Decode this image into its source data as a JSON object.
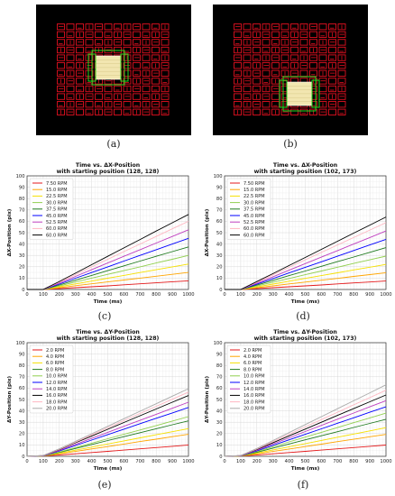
{
  "sim_panels": [
    {
      "label": "(a)"
    },
    {
      "label": "(b)"
    }
  ],
  "chart_panels": [
    {
      "label": "(c)"
    },
    {
      "label": "(d)"
    },
    {
      "label": "(e)"
    },
    {
      "label": "(f)"
    }
  ],
  "chart_data": [
    {
      "type": "line",
      "title": "Time vs. ΔX-Position",
      "subtitle": "with starting position (128, 128)",
      "xlabel": "Time (ms)",
      "ylabel": "ΔX-Position (pix)",
      "xlim": [
        0,
        1000
      ],
      "ylim": [
        0,
        100
      ],
      "xticks": [
        "0",
        "100",
        "200",
        "300",
        "400",
        "500",
        "600",
        "700",
        "800",
        "900",
        "1000"
      ],
      "yticks": [
        "0",
        "10",
        "20",
        "30",
        "40",
        "50",
        "60",
        "70",
        "80",
        "90",
        "100"
      ],
      "grid": true,
      "legend_position": "top-left",
      "x": [
        0,
        100,
        200,
        300,
        400,
        500,
        600,
        700,
        800,
        900,
        1000
      ],
      "series": [
        {
          "name": "7.50 RPM",
          "color": "#e41a1c",
          "values": [
            0,
            0,
            0.8,
            1.6,
            2.4,
            3.2,
            4.1,
            5.0,
            5.9,
            6.8,
            7.6
          ]
        },
        {
          "name": "15.0 RPM",
          "color": "#ffa500",
          "values": [
            0,
            0,
            1.6,
            3.3,
            5.0,
            6.7,
            8.3,
            10.0,
            11.7,
            13.3,
            15.0
          ]
        },
        {
          "name": "22.5 RPM",
          "color": "#f5e000",
          "values": [
            0,
            0,
            2.4,
            4.9,
            7.4,
            9.9,
            12.4,
            14.9,
            17.4,
            19.9,
            22.4
          ]
        },
        {
          "name": "30.0 RPM",
          "color": "#92d050",
          "values": [
            0,
            0,
            3.2,
            6.6,
            10.0,
            13.3,
            16.6,
            19.9,
            23.3,
            26.6,
            30.0
          ]
        },
        {
          "name": "37.5 RPM",
          "color": "#1f7a1f",
          "values": [
            0,
            0,
            4.0,
            8.2,
            12.4,
            16.6,
            20.8,
            25.0,
            29.2,
            33.3,
            37.5
          ]
        },
        {
          "name": "45.0 RPM",
          "color": "#0000ff",
          "values": [
            0,
            0,
            4.8,
            9.9,
            14.9,
            19.9,
            25.0,
            30.0,
            35.0,
            40.0,
            45.0
          ]
        },
        {
          "name": "52.5 RPM",
          "color": "#bf3fbf",
          "values": [
            0,
            0,
            5.6,
            11.5,
            17.4,
            23.3,
            29.2,
            35.0,
            40.9,
            46.7,
            52.5
          ]
        },
        {
          "name": "60.0 RPM",
          "color": "#ffb6c1",
          "values": [
            0,
            0,
            6.4,
            13.1,
            19.9,
            26.6,
            33.3,
            40.0,
            46.7,
            53.4,
            60.0
          ]
        },
        {
          "name": "60.0 RPM",
          "color": "#000000",
          "values": [
            0,
            0,
            7.1,
            14.4,
            21.8,
            29.2,
            36.6,
            44.0,
            51.4,
            58.7,
            66.0
          ]
        }
      ]
    },
    {
      "type": "line",
      "title": "Time vs. ΔX-Position",
      "subtitle": "with starting position (102, 173)",
      "xlabel": "Time (ms)",
      "ylabel": "ΔX-Position (pix)",
      "xlim": [
        0,
        1000
      ],
      "ylim": [
        0,
        100
      ],
      "xticks": [
        "0",
        "100",
        "200",
        "300",
        "400",
        "500",
        "600",
        "700",
        "800",
        "900",
        "1000"
      ],
      "yticks": [
        "0",
        "10",
        "20",
        "30",
        "40",
        "50",
        "60",
        "70",
        "80",
        "90",
        "100"
      ],
      "grid": true,
      "legend_position": "top-left",
      "x": [
        0,
        100,
        200,
        300,
        400,
        500,
        600,
        700,
        800,
        900,
        1000
      ],
      "series": [
        {
          "name": "7.50 RPM",
          "color": "#e41a1c",
          "values": [
            0,
            0,
            0.8,
            1.6,
            2.4,
            3.2,
            4.0,
            4.9,
            5.8,
            6.6,
            7.5
          ]
        },
        {
          "name": "15.0 RPM",
          "color": "#ffa500",
          "values": [
            0,
            0,
            1.6,
            3.2,
            4.9,
            6.5,
            8.2,
            9.8,
            11.5,
            13.1,
            14.8
          ]
        },
        {
          "name": "22.5 RPM",
          "color": "#f5e000",
          "values": [
            0,
            0,
            2.3,
            4.8,
            7.3,
            9.8,
            12.2,
            14.7,
            17.2,
            19.6,
            22.1
          ]
        },
        {
          "name": "30.0 RPM",
          "color": "#92d050",
          "values": [
            0,
            0,
            3.1,
            6.4,
            9.7,
            13.0,
            16.3,
            19.6,
            22.9,
            26.1,
            29.4
          ]
        },
        {
          "name": "37.5 RPM",
          "color": "#1f7a1f",
          "values": [
            0,
            0,
            3.9,
            8.0,
            12.2,
            16.3,
            20.4,
            24.5,
            28.6,
            32.7,
            36.8
          ]
        },
        {
          "name": "45.0 RPM",
          "color": "#0000ff",
          "values": [
            0,
            0,
            4.7,
            9.6,
            14.6,
            19.5,
            24.4,
            29.3,
            34.3,
            39.2,
            44.1
          ]
        },
        {
          "name": "52.5 RPM",
          "color": "#bf3fbf",
          "values": [
            0,
            0,
            5.5,
            11.2,
            17.0,
            22.8,
            28.5,
            34.2,
            40.0,
            45.7,
            51.5
          ]
        },
        {
          "name": "60.0 RPM",
          "color": "#ffb6c1",
          "values": [
            0,
            0,
            6.3,
            12.9,
            19.5,
            26.1,
            32.6,
            39.2,
            45.7,
            52.3,
            58.8
          ]
        },
        {
          "name": "60.0 RPM",
          "color": "#000000",
          "values": [
            0,
            0,
            7.0,
            14.0,
            21.1,
            28.2,
            35.3,
            42.5,
            49.6,
            56.7,
            63.8
          ]
        }
      ]
    },
    {
      "type": "line",
      "title": "Time vs. ΔY-Position",
      "subtitle": "with starting position (128, 128)",
      "xlabel": "Time (ms)",
      "ylabel": "ΔY-Position (pix)",
      "xlim": [
        0,
        1000
      ],
      "ylim": [
        0,
        100
      ],
      "xticks": [
        "0",
        "100",
        "200",
        "300",
        "400",
        "500",
        "600",
        "700",
        "800",
        "900",
        "1000"
      ],
      "yticks": [
        "0",
        "10",
        "20",
        "30",
        "40",
        "50",
        "60",
        "70",
        "80",
        "90",
        "100"
      ],
      "grid": true,
      "legend_position": "top-left",
      "x": [
        0,
        100,
        200,
        300,
        400,
        500,
        600,
        700,
        800,
        900,
        1000
      ],
      "series": [
        {
          "name": "2.0 RPM",
          "color": "#e41a1c",
          "values": [
            0,
            0.2,
            1.2,
            2.2,
            3.3,
            4.4,
            5.5,
            6.6,
            7.7,
            8.8,
            10.0
          ]
        },
        {
          "name": "4.0 RPM",
          "color": "#ffa500",
          "values": [
            0,
            0.3,
            2.2,
            4.3,
            6.5,
            8.6,
            10.8,
            13.0,
            15.1,
            17.3,
            19.4
          ]
        },
        {
          "name": "6.0 RPM",
          "color": "#f5e000",
          "values": [
            0,
            0.3,
            2.7,
            5.4,
            8.1,
            10.9,
            13.6,
            16.3,
            19.0,
            21.7,
            24.4
          ]
        },
        {
          "name": "8.0 RPM",
          "color": "#1f7a1f",
          "values": [
            0,
            0.4,
            3.4,
            6.9,
            10.4,
            13.9,
            17.3,
            20.8,
            24.3,
            27.8,
            31.2
          ]
        },
        {
          "name": "10.0 RPM",
          "color": "#92d050",
          "values": [
            0,
            0.4,
            3.8,
            7.7,
            11.6,
            15.5,
            19.4,
            23.2,
            27.1,
            31.0,
            34.9
          ]
        },
        {
          "name": "12.0 RPM",
          "color": "#0000ff",
          "values": [
            0,
            0.5,
            4.7,
            9.5,
            14.3,
            19.1,
            23.9,
            28.7,
            33.5,
            38.2,
            43.0
          ]
        },
        {
          "name": "14.0 RPM",
          "color": "#bf3fbf",
          "values": [
            0,
            0.5,
            5.2,
            10.5,
            15.8,
            21.1,
            26.4,
            31.7,
            37.0,
            42.3,
            47.6
          ]
        },
        {
          "name": "16.0 RPM",
          "color": "#000000",
          "values": [
            0,
            0.6,
            5.9,
            11.9,
            17.8,
            23.8,
            29.8,
            35.7,
            41.7,
            47.6,
            53.5
          ]
        },
        {
          "name": "18.0 RPM",
          "color": "#ffb6c1",
          "values": [
            0,
            0.6,
            6.2,
            12.5,
            18.8,
            25.1,
            31.4,
            37.7,
            44.0,
            50.2,
            56.5
          ]
        },
        {
          "name": "20.0 RPM",
          "color": "#aaaaaa",
          "values": [
            0,
            0.7,
            6.6,
            13.2,
            19.8,
            26.4,
            33.1,
            39.7,
            46.3,
            52.9,
            59.5
          ]
        }
      ]
    },
    {
      "type": "line",
      "title": "Time vs. ΔY-Position",
      "subtitle": "with starting position (102, 173)",
      "xlabel": "Time (ms)",
      "ylabel": "ΔY-Position (pix)",
      "xlim": [
        0,
        1000
      ],
      "ylim": [
        0,
        100
      ],
      "xticks": [
        "0",
        "100",
        "200",
        "300",
        "400",
        "500",
        "600",
        "700",
        "800",
        "900",
        "1000"
      ],
      "yticks": [
        "0",
        "10",
        "20",
        "30",
        "40",
        "50",
        "60",
        "70",
        "80",
        "90",
        "100"
      ],
      "grid": true,
      "legend_position": "top-left",
      "x": [
        0,
        100,
        200,
        300,
        400,
        500,
        600,
        700,
        800,
        900,
        1000
      ],
      "series": [
        {
          "name": "2.0 RPM",
          "color": "#e41a1c",
          "values": [
            0,
            0.2,
            1.1,
            2.2,
            3.3,
            4.4,
            5.5,
            6.6,
            7.7,
            8.8,
            9.9
          ]
        },
        {
          "name": "4.0 RPM",
          "color": "#ffa500",
          "values": [
            0,
            0.3,
            2.1,
            4.3,
            6.4,
            8.6,
            10.7,
            12.9,
            15.0,
            17.2,
            19.3
          ]
        },
        {
          "name": "6.0 RPM",
          "color": "#f5e000",
          "values": [
            0,
            0.3,
            2.8,
            5.6,
            8.4,
            11.2,
            14.0,
            16.8,
            19.6,
            22.4,
            25.2
          ]
        },
        {
          "name": "8.0 RPM",
          "color": "#1f7a1f",
          "values": [
            0,
            0.4,
            3.6,
            7.2,
            10.9,
            14.5,
            18.1,
            21.7,
            25.4,
            29.0,
            32.6
          ]
        },
        {
          "name": "10.0 RPM",
          "color": "#92d050",
          "values": [
            0,
            0.4,
            4.2,
            8.4,
            12.7,
            16.9,
            21.1,
            25.3,
            29.6,
            33.8,
            38.0
          ]
        },
        {
          "name": "12.0 RPM",
          "color": "#0000ff",
          "values": [
            0,
            0.5,
            4.8,
            9.7,
            14.5,
            19.4,
            24.2,
            29.1,
            33.9,
            38.8,
            43.6
          ]
        },
        {
          "name": "14.0 RPM",
          "color": "#bf3fbf",
          "values": [
            0,
            0.5,
            5.4,
            10.9,
            16.3,
            21.8,
            27.2,
            32.7,
            38.1,
            43.6,
            49.0
          ]
        },
        {
          "name": "16.0 RPM",
          "color": "#000000",
          "values": [
            0,
            0.6,
            6.0,
            12.0,
            18.0,
            24.0,
            30.0,
            36.0,
            42.0,
            48.0,
            54.0
          ]
        },
        {
          "name": "18.0 RPM",
          "color": "#ffb6c1",
          "values": [
            0,
            0.6,
            6.4,
            12.9,
            19.4,
            25.9,
            32.3,
            38.8,
            45.3,
            51.7,
            58.2
          ]
        },
        {
          "name": "20.0 RPM",
          "color": "#aaaaaa",
          "values": [
            0,
            0.7,
            6.9,
            13.9,
            20.9,
            27.9,
            34.9,
            41.9,
            48.9,
            55.9,
            62.9
          ]
        }
      ]
    }
  ]
}
